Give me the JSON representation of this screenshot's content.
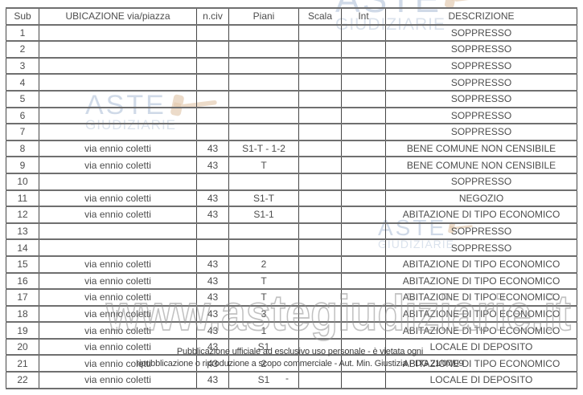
{
  "table": {
    "columns": [
      "Sub",
      "UBICAZIONE via/piazza",
      "n.civ",
      "Piani",
      "Scala",
      "Int",
      "DESCRIZIONE"
    ],
    "column_keys": [
      "sub",
      "ubicazione",
      "nciv",
      "piani",
      "scala",
      "int",
      "descrizione"
    ],
    "rows": [
      [
        "1",
        "",
        "",
        "",
        "",
        "",
        "SOPPRESSO"
      ],
      [
        "2",
        "",
        "",
        "",
        "",
        "",
        "SOPPRESSO"
      ],
      [
        "3",
        "",
        "",
        "",
        "",
        "",
        "SOPPRESSO"
      ],
      [
        "4",
        "",
        "",
        "",
        "",
        "",
        "SOPPRESSO"
      ],
      [
        "5",
        "",
        "",
        "",
        "",
        "",
        "SOPPRESSO"
      ],
      [
        "6",
        "",
        "",
        "",
        "",
        "",
        "SOPPRESSO"
      ],
      [
        "7",
        "",
        "",
        "",
        "",
        "",
        "SOPPRESSO"
      ],
      [
        "8",
        "via ennio coletti",
        "43",
        "S1-T - 1-2",
        "",
        "",
        "BENE COMUNE NON CENSIBILE"
      ],
      [
        "9",
        "via ennio coletti",
        "43",
        "T",
        "",
        "",
        "BENE COMUNE NON CENSIBILE"
      ],
      [
        "10",
        "",
        "",
        "",
        "",
        "",
        "SOPPRESSO"
      ],
      [
        "11",
        "via ennio coletti",
        "43",
        "S1-T",
        "",
        "",
        "NEGOZIO"
      ],
      [
        "12",
        "via ennio coletti",
        "43",
        "S1-1",
        "",
        "",
        "ABITAZIONE DI TIPO ECONOMICO"
      ],
      [
        "13",
        "",
        "",
        "",
        "",
        "",
        "SOPPRESSO"
      ],
      [
        "14",
        "",
        "",
        "",
        "",
        "",
        "SOPPRESSO"
      ],
      [
        "15",
        "via ennio coletti",
        "43",
        "2",
        "",
        "",
        "ABITAZIONE DI TIPO ECONOMICO"
      ],
      [
        "16",
        "via ennio coletti",
        "43",
        "T",
        "",
        "",
        "ABITAZIONE DI TIPO ECONOMICO"
      ],
      [
        "17",
        "via ennio coletti",
        "43",
        "T",
        "",
        "",
        "ABITAZIONE DI TIPO ECONOMICO"
      ],
      [
        "18",
        "via ennio coletti",
        "43",
        "3",
        "",
        "",
        "ABITAZIONE DI TIPO ECONOMICO"
      ],
      [
        "19",
        "via ennio coletti",
        "43",
        "1",
        "",
        "",
        "ABITAZIONE DI TIPO ECONOMICO"
      ],
      [
        "20",
        "via ennio coletti",
        "43",
        "S1",
        "",
        "",
        "LOCALE DI DEPOSITO"
      ],
      [
        "21",
        "via ennio coletti",
        "43",
        "2",
        "",
        "",
        "ABITAZIONE DI TIPO ECONOMICO"
      ],
      [
        "22",
        "via ennio coletti",
        "43",
        "S1",
        "",
        "",
        "LOCALE DI DEPOSITO"
      ]
    ]
  },
  "watermarks": {
    "logo_line1": "ASTE",
    "logo_line2": "GIUDIZIARIE",
    "gavel_icon": "gavel-icon",
    "url": "www.astegiudiziarie.it",
    "disclaimer_line1": "Pubblicazione ufficiale ad esclusivo uso personale - è vietata ogni",
    "disclaimer_line2": "ripubblicazione o riproduzione a scopo commerciale - Aut. Min. Giustizia PDG 21/07/09",
    "stray_mark": "-"
  },
  "colors": {
    "text": "#4d4d4d",
    "border_horizontal": "#6f6f6f",
    "border_vertical": "#474747",
    "logo_blue": "#aabdd6",
    "gavel_tan": "#debf9d",
    "url_outline": "#8f8f8f"
  }
}
